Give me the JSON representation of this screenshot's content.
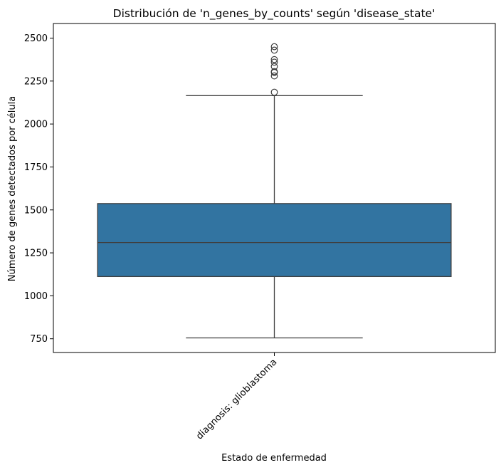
{
  "chart_data": {
    "type": "box",
    "title": "Distribución de 'n_genes_by_counts' según 'disease_state'",
    "xlabel": "Estado de enfermedad",
    "ylabel": "Número de genes detectados por célula",
    "categories": [
      "diagnosis: glioblastoma"
    ],
    "ylim": [
      670,
      2585
    ],
    "yticks": [
      750,
      1000,
      1250,
      1500,
      1750,
      2000,
      2250,
      2500
    ],
    "grid": false,
    "legend": "none",
    "boxes": [
      {
        "category": "diagnosis: glioblastoma",
        "whisker_low": 755,
        "q1": 1112,
        "median": 1310,
        "q3": 1537,
        "whisker_high": 2165,
        "outliers": [
          2185,
          2280,
          2300,
          2305,
          2335,
          2360,
          2375,
          2430,
          2450
        ]
      }
    ],
    "colors": {
      "box_fill": "#3274a1",
      "line": "#3f3f3f"
    }
  }
}
